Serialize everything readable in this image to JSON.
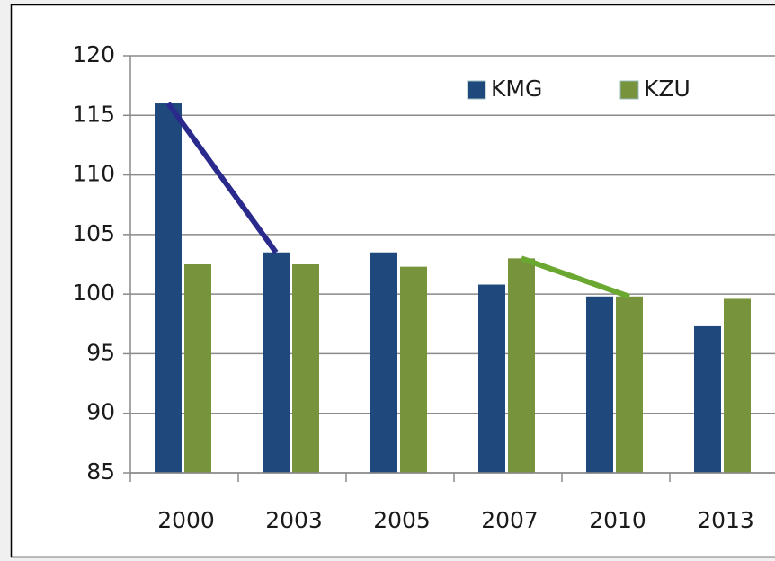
{
  "chart_data": {
    "type": "bar",
    "categories": [
      "2000",
      "2003",
      "2005",
      "2007",
      "2010",
      "2013"
    ],
    "series": [
      {
        "name": "KMG",
        "color": "#1f497d",
        "values": [
          116,
          103.5,
          103.5,
          100.8,
          99.8,
          97.3
        ]
      },
      {
        "name": "KZU",
        "color": "#77933c",
        "values": [
          102.5,
          102.5,
          102.3,
          103,
          99.8,
          99.6
        ]
      }
    ],
    "ylim": [
      85,
      120
    ],
    "yticks": [
      85,
      90,
      95,
      100,
      105,
      110,
      115,
      120
    ],
    "grid": true,
    "legend": "top-right",
    "trend_lines": [
      {
        "series": 0,
        "from": 0,
        "to": 1,
        "color": "#2a2a8c"
      },
      {
        "series": 1,
        "from": 3,
        "to": 4,
        "color": "#6aa832"
      }
    ]
  }
}
